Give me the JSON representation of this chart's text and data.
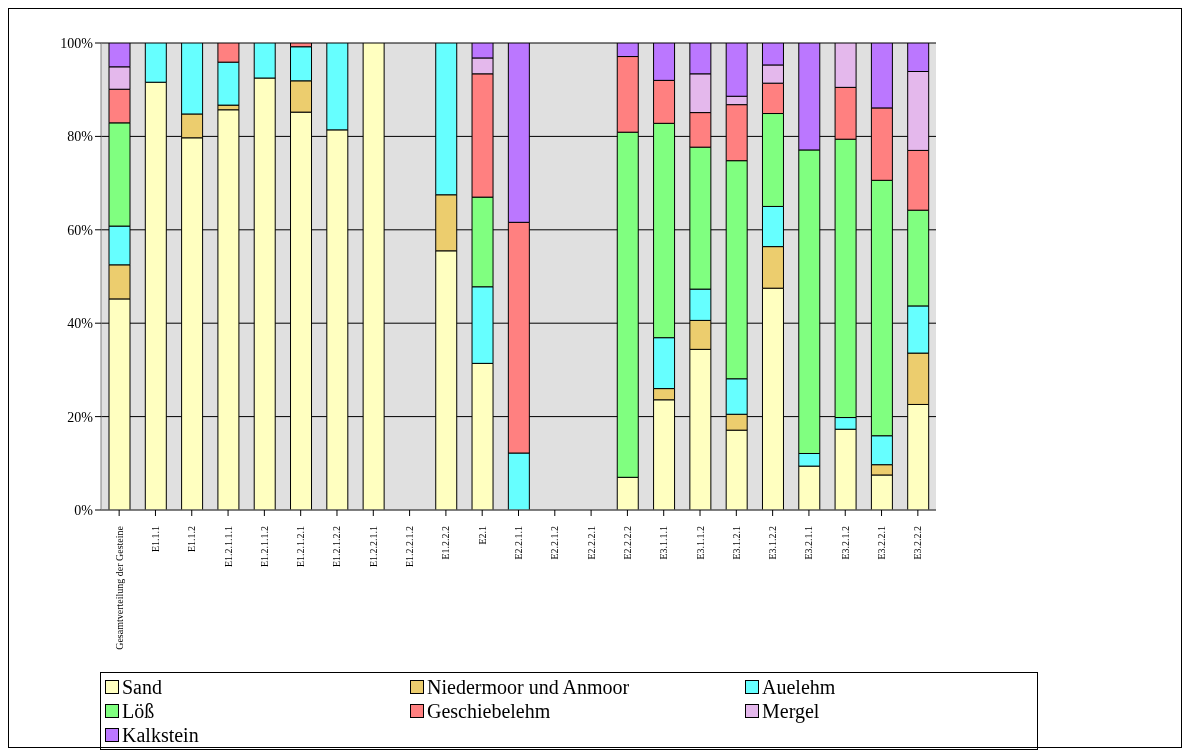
{
  "chart_data": {
    "type": "bar",
    "stacked": true,
    "categories": [
      "Gesamtverteilung der Gesteine",
      "E1.1.1",
      "E1.1.2",
      "E1.2.1.1.1",
      "E1.2.1.1.2",
      "E1.2.1.2.1",
      "E1.2.1.2.2",
      "E1.2.2.1.1",
      "E1.2.2.1.2",
      "E1.2.2.2",
      "E2.1",
      "E2.2.1.1",
      "E2.2.1.2",
      "E2.2.2.1",
      "E2.2.2.2",
      "E3.1.1.1",
      "E3.1.1.2",
      "E3.1.2.1",
      "E3.1.2.2",
      "E3.2.1.1",
      "E3.2.1.2",
      "E3.2.2.1",
      "E3.2.2.2"
    ],
    "series": [
      {
        "name": "Sand",
        "color": "#ffffc0",
        "values": [
          45.2,
          91.6,
          79.7,
          85.7,
          92.5,
          85.2,
          81.4,
          100,
          null,
          55.5,
          31.4,
          null,
          null,
          null,
          7.0,
          23.6,
          34.4,
          17.1,
          47.5,
          9.4,
          17.3,
          7.5,
          22.6
        ]
      },
      {
        "name": "Niedermoor und Anmoor",
        "color": "#eccd6e",
        "values": [
          7.3,
          null,
          5.1,
          1.0,
          null,
          6.7,
          null,
          null,
          null,
          12.0,
          null,
          null,
          null,
          null,
          null,
          2.4,
          6.2,
          3.4,
          8.9,
          null,
          null,
          2.2,
          11.0
        ]
      },
      {
        "name": "Auelehm",
        "color": "#66ffff",
        "values": [
          8.3,
          8.4,
          15.2,
          9.2,
          7.5,
          7.3,
          18.6,
          null,
          null,
          32.5,
          16.4,
          12.2,
          null,
          null,
          null,
          10.9,
          6.7,
          7.6,
          8.6,
          2.7,
          2.5,
          6.2,
          10.1
        ]
      },
      {
        "name": "Löß",
        "color": "#80ff80",
        "values": [
          22.1,
          null,
          null,
          null,
          null,
          null,
          null,
          null,
          null,
          null,
          19.2,
          null,
          null,
          null,
          73.9,
          45.9,
          30.4,
          46.7,
          19.9,
          65.0,
          59.6,
          54.7,
          20.5
        ]
      },
      {
        "name": "Geschiebelehm",
        "color": "#ff8080",
        "values": [
          7.2,
          null,
          null,
          4.1,
          null,
          0.8,
          null,
          null,
          null,
          null,
          26.4,
          49.4,
          null,
          null,
          16.2,
          9.2,
          7.4,
          12.0,
          6.5,
          null,
          11.1,
          15.5,
          12.8
        ]
      },
      {
        "name": "Mergel",
        "color": "#e4b8ec",
        "values": [
          4.8,
          null,
          null,
          null,
          null,
          null,
          null,
          null,
          null,
          null,
          3.4,
          null,
          null,
          null,
          null,
          null,
          8.3,
          1.8,
          3.9,
          null,
          9.5,
          null,
          16.9
        ]
      },
      {
        "name": "Kalkstein",
        "color": "#bb77ff",
        "values": [
          5.1,
          null,
          null,
          null,
          null,
          null,
          null,
          null,
          null,
          null,
          3.2,
          38.4,
          null,
          null,
          2.9,
          8.0,
          6.6,
          11.4,
          4.7,
          22.9,
          null,
          13.9,
          6.1
        ]
      }
    ],
    "ylim": [
      0,
      100
    ],
    "yticks": [
      {
        "value": 0,
        "label": "0%"
      },
      {
        "value": 20,
        "label": "20%"
      },
      {
        "value": 40,
        "label": "40%"
      },
      {
        "value": 60,
        "label": "60%"
      },
      {
        "value": 80,
        "label": "80%"
      },
      {
        "value": 100,
        "label": "100%"
      }
    ],
    "grid": "y",
    "legend": "bottom"
  }
}
